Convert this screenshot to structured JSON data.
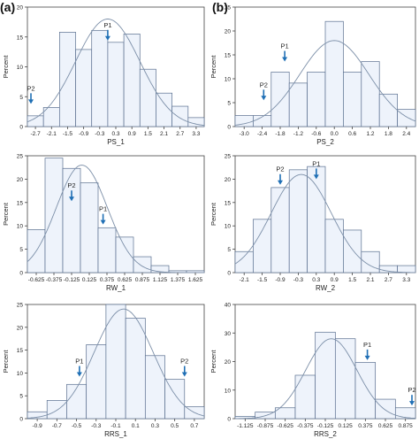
{
  "panel_labels": [
    "(a)",
    "(b)"
  ],
  "colors": {
    "bar_fill": "#eef3fb",
    "bar_stroke": "#5a6f8f",
    "curve": "#7c8fa8",
    "arrow": "#1f6fb5",
    "axis": "#444444",
    "text": "#222222"
  },
  "chart_data": [
    {
      "type": "bar",
      "title": "",
      "xlabel": "PS_1",
      "ylabel": "Percent",
      "xticks": [
        "-2.7",
        "-2.1",
        "-1.5",
        "-0.9",
        "-0.3",
        "0.3",
        "0.9",
        "1.5",
        "2.1",
        "2.7",
        "3.3"
      ],
      "tick_values": [
        -2.7,
        -2.1,
        -1.5,
        -0.9,
        -0.3,
        0.3,
        0.9,
        1.5,
        2.1,
        2.7,
        3.3
      ],
      "bin_edges": [
        -3.0,
        -2.4,
        -1.8,
        -1.2,
        -0.6,
        0.0,
        0.6,
        1.2,
        1.8,
        2.4,
        3.0,
        3.6
      ],
      "values": [
        1.8,
        3.2,
        15.8,
        12.9,
        16.1,
        14.1,
        15.5,
        9.6,
        5.6,
        3.4,
        1.5
      ],
      "normal_curve": {
        "mean": 0.0,
        "sd": 1.2,
        "peak": 18.0
      },
      "ylim": [
        0,
        20
      ],
      "yticks": [
        0,
        5,
        10,
        15,
        20
      ],
      "xlim": [
        -3.0,
        3.6
      ],
      "annotations": [
        {
          "label": "P1",
          "x": 0.0,
          "y": 14.4
        },
        {
          "label": "P2",
          "x": -3.05,
          "y": 3.8
        }
      ]
    },
    {
      "type": "bar",
      "title": "",
      "xlabel": "PS_2",
      "ylabel": "Percent",
      "xticks": [
        "-3.0",
        "-2.4",
        "-1.8",
        "-1.2",
        "-0.6",
        "0.0",
        "0.6",
        "1.2",
        "1.8",
        "2.4"
      ],
      "tick_values": [
        -3.0,
        -2.4,
        -1.8,
        -1.2,
        -0.6,
        0.0,
        0.6,
        1.2,
        1.8,
        2.4
      ],
      "bin_edges": [
        -3.3,
        -2.7,
        -2.1,
        -1.5,
        -0.9,
        -0.3,
        0.3,
        0.9,
        1.5,
        2.1,
        2.7
      ],
      "values": [
        2.3,
        2.3,
        11.4,
        9.1,
        11.4,
        22.0,
        11.4,
        13.6,
        6.8,
        3.6
      ],
      "normal_curve": {
        "mean": 0.0,
        "sd": 1.15,
        "peak": 18.0
      },
      "ylim": [
        0,
        25
      ],
      "yticks": [
        0,
        5,
        10,
        15,
        20,
        25
      ],
      "xlim": [
        -3.3,
        2.7
      ],
      "annotations": [
        {
          "label": "P1",
          "x": -1.65,
          "y": 13.6
        },
        {
          "label": "P2",
          "x": -2.35,
          "y": 5.5
        }
      ]
    },
    {
      "type": "bar",
      "title": "",
      "xlabel": "RW_1",
      "ylabel": "Percent",
      "xticks": [
        "-0.625",
        "-0.375",
        "-0.125",
        "0.125",
        "0.375",
        "0.625",
        "0.875",
        "1.125",
        "1.375",
        "1.625"
      ],
      "tick_values": [
        -0.625,
        -0.375,
        -0.125,
        0.125,
        0.375,
        0.625,
        0.875,
        1.125,
        1.375,
        1.625
      ],
      "bin_edges": [
        -0.75,
        -0.5,
        -0.25,
        0.0,
        0.25,
        0.5,
        0.75,
        1.0,
        1.25,
        1.5,
        1.75
      ],
      "values": [
        9.2,
        24.5,
        22.3,
        19.2,
        9.6,
        7.6,
        3.4,
        1.5,
        0.4,
        0.4
      ],
      "normal_curve": {
        "mean": 0.02,
        "sd": 0.36,
        "peak": 23.0
      },
      "ylim": [
        0,
        25
      ],
      "yticks": [
        0,
        5,
        10,
        15,
        20,
        25
      ],
      "xlim": [
        -0.75,
        1.75
      ],
      "annotations": [
        {
          "label": "P2",
          "x": -0.125,
          "y": 15.3
        },
        {
          "label": "P1",
          "x": 0.32,
          "y": 10.3
        }
      ]
    },
    {
      "type": "bar",
      "title": "",
      "xlabel": "RW_2",
      "ylabel": "Percent",
      "xticks": [
        "-2.1",
        "-1.5",
        "-0.9",
        "-0.3",
        "0.3",
        "0.9",
        "1.5",
        "2.1",
        "2.7",
        "3.3"
      ],
      "tick_values": [
        -2.1,
        -1.5,
        -0.9,
        -0.3,
        0.3,
        0.9,
        1.5,
        2.1,
        2.7,
        3.3
      ],
      "bin_edges": [
        -2.4,
        -1.8,
        -1.2,
        -0.6,
        0.0,
        0.6,
        1.2,
        1.8,
        2.4,
        3.0,
        3.6
      ],
      "values": [
        4.5,
        11.4,
        18.2,
        22.0,
        22.7,
        11.4,
        9.1,
        4.5,
        1.5,
        1.5
      ],
      "normal_curve": {
        "mean": -0.2,
        "sd": 1.0,
        "peak": 21.0
      },
      "ylim": [
        0,
        25
      ],
      "yticks": [
        0,
        5,
        10,
        15,
        20,
        25
      ],
      "xlim": [
        -2.4,
        3.6
      ],
      "annotations": [
        {
          "label": "P2",
          "x": -0.9,
          "y": 18.8
        },
        {
          "label": "P1",
          "x": 0.3,
          "y": 20.0
        }
      ]
    },
    {
      "type": "bar",
      "title": "",
      "xlabel": "RRS_1",
      "ylabel": "Percent",
      "xticks": [
        "-0.9",
        "-0.7",
        "-0.5",
        "-0.3",
        "-0.1",
        "0.1",
        "0.3",
        "0.5",
        "0.7"
      ],
      "tick_values": [
        -0.9,
        -0.7,
        -0.5,
        -0.3,
        -0.1,
        0.1,
        0.3,
        0.5,
        0.7
      ],
      "bin_edges": [
        -1.0,
        -0.8,
        -0.6,
        -0.4,
        -0.2,
        0.0,
        0.2,
        0.4,
        0.6,
        0.8
      ],
      "values": [
        1.5,
        4.0,
        7.5,
        16.2,
        25.0,
        22.0,
        13.8,
        8.6,
        2.6
      ],
      "normal_curve": {
        "mean": -0.02,
        "sd": 0.3,
        "peak": 24.0
      },
      "ylim": [
        0,
        25
      ],
      "yticks": [
        0,
        5,
        10,
        15,
        20,
        25
      ],
      "xlim": [
        -1.0,
        0.8
      ],
      "annotations": [
        {
          "label": "P1",
          "x": -0.47,
          "y": 9.2
        },
        {
          "label": "P2",
          "x": 0.6,
          "y": 9.2
        }
      ]
    },
    {
      "type": "bar",
      "title": "",
      "xlabel": "RRS_2",
      "ylabel": "Percent",
      "xticks": [
        "-1.125",
        "-0.875",
        "-0.625",
        "-0.375",
        "-0.125",
        "0.125",
        "0.375",
        "0.625",
        "0.875"
      ],
      "tick_values": [
        -1.125,
        -0.875,
        -0.625,
        -0.375,
        -0.125,
        0.125,
        0.375,
        0.625,
        0.875
      ],
      "bin_edges": [
        -1.25,
        -1.0,
        -0.75,
        -0.5,
        -0.25,
        0.0,
        0.25,
        0.5,
        0.75,
        1.0
      ],
      "values": [
        0.8,
        2.3,
        3.8,
        15.2,
        30.3,
        28.0,
        19.7,
        6.8,
        3.8
      ],
      "normal_curve": {
        "mean": -0.05,
        "sd": 0.32,
        "peak": 28.0
      },
      "ylim": [
        0,
        40
      ],
      "yticks": [
        0,
        10,
        20,
        30,
        40
      ],
      "xlim": [
        -1.25,
        1.0
      ],
      "annotations": [
        {
          "label": "P1",
          "x": 0.4,
          "y": 20.5
        },
        {
          "label": "P2",
          "x": 1.0,
          "y": 4.6
        }
      ]
    }
  ]
}
